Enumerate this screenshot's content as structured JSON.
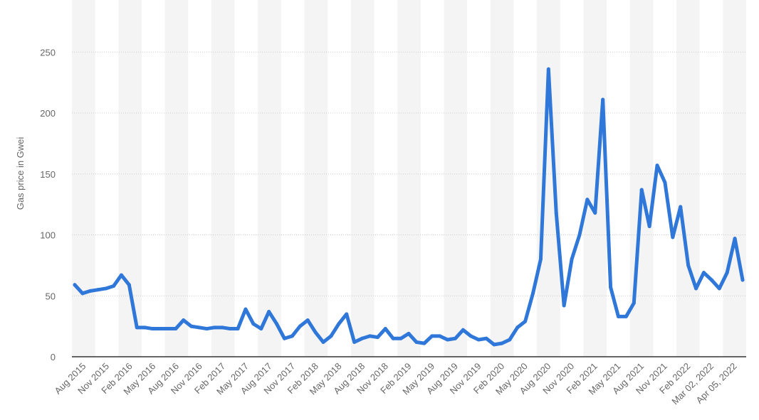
{
  "chart_data": {
    "type": "line",
    "title": "",
    "xlabel": "",
    "ylabel": "Gas price in Gwei",
    "ylim": [
      0,
      275
    ],
    "y_ticks": [
      0,
      50,
      100,
      150,
      200,
      250
    ],
    "grid": "horizontal dotted",
    "x_tick_labels": [
      "Aug 2015",
      "Nov 2015",
      "Feb 2016",
      "May 2016",
      "Aug 2016",
      "Nov 2016",
      "Feb 2017",
      "May 2017",
      "Aug 2017",
      "Nov 2017",
      "Feb 2018",
      "May 2018",
      "Aug 2018",
      "Nov 2018",
      "Feb 2019",
      "May 2019",
      "Aug 2019",
      "Nov 2019",
      "Feb 2020",
      "May 2020",
      "Aug 2020",
      "Nov 2020",
      "Feb 2021",
      "May 2021",
      "Aug 2021",
      "Nov 2021",
      "Feb 2022",
      "Mar 02, 2022",
      "Apr 05, 2022"
    ],
    "colors": {
      "line": "#2f77d8",
      "axis": "#333333",
      "grid": "#cccccc",
      "band": "#f4f4f4"
    },
    "series": [
      {
        "values": [
          59,
          52,
          54,
          55,
          56,
          58,
          67,
          59,
          24,
          24,
          23,
          23,
          23,
          23,
          30,
          25,
          24,
          23,
          24,
          24,
          23,
          23,
          39,
          27,
          23,
          37,
          27,
          15,
          17,
          25,
          30,
          20,
          12,
          17,
          27,
          35,
          12,
          15,
          17,
          16,
          23,
          15,
          15,
          19,
          12,
          11,
          17,
          17,
          14,
          15,
          22,
          17,
          14,
          15,
          10,
          11,
          14,
          24,
          29,
          52,
          80,
          236,
          118,
          42,
          80,
          100,
          129,
          118,
          211,
          57,
          33,
          33,
          44,
          137,
          107,
          157,
          143,
          98,
          123,
          75,
          56,
          69,
          63,
          56,
          69,
          97,
          63
        ]
      }
    ]
  }
}
